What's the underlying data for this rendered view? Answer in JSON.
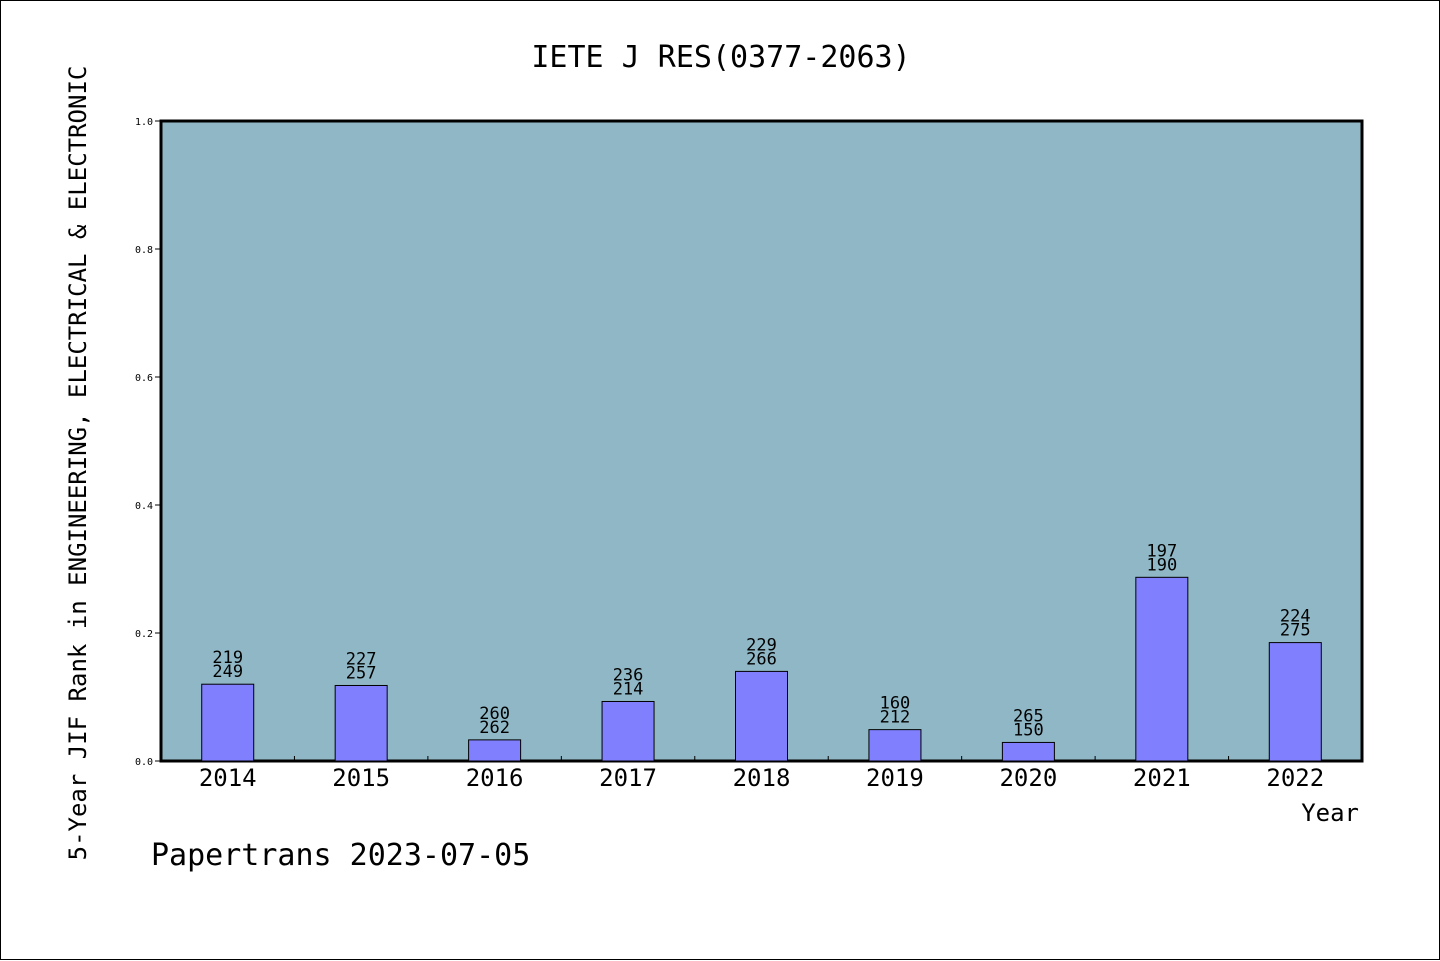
{
  "chart_data": {
    "type": "bar",
    "title": "IETE J RES(0377-2063)",
    "xlabel": "Year",
    "ylabel": "5-Year JIF Rank in ENGINEERING, ELECTRICAL & ELECTRONIC",
    "ylim": [
      0,
      1.0
    ],
    "yticks": [
      "0.0",
      "0.2",
      "0.4",
      "0.6",
      "0.8",
      "1.0"
    ],
    "categories": [
      "2014",
      "2015",
      "2016",
      "2017",
      "2018",
      "2019",
      "2020",
      "2021",
      "2022"
    ],
    "values": [
      0.12,
      0.118,
      0.033,
      0.093,
      0.14,
      0.049,
      0.029,
      0.287,
      0.185
    ],
    "labels_top": [
      "219",
      "227",
      "260",
      "236",
      "229",
      "160",
      "265",
      "197",
      "224"
    ],
    "labels_bottom": [
      "249",
      "257",
      "262",
      "214",
      "266",
      "212",
      "150",
      "190",
      "275"
    ],
    "grid": false,
    "colors": {
      "plot_background": "#8fb7c5",
      "bar": "#8080ff",
      "bar_edge": "#000000"
    }
  },
  "footer": {
    "text": "Papertrans 2023-07-05"
  }
}
